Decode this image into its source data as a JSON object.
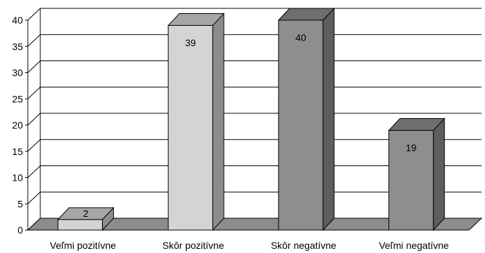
{
  "chart_data": {
    "type": "bar",
    "style": "3d-column",
    "categories": [
      "Veľmi pozitívne",
      "Skôr pozitívne",
      "Skôr negatívne",
      "Veľmi negatívne"
    ],
    "values": [
      2,
      39,
      40,
      19
    ],
    "data_labels": [
      "2",
      "39",
      "40",
      "19"
    ],
    "ylim": [
      0,
      40
    ],
    "yticks": [
      "0",
      "5",
      "10",
      "15",
      "20",
      "25",
      "30",
      "35",
      "40"
    ],
    "grid": true,
    "legend": "none",
    "title": "",
    "xlabel": "",
    "ylabel": "",
    "colors": {
      "bar_fronts": [
        "#d4d4d4",
        "#d4d4d4",
        "#8e8e8e",
        "#8e8e8e"
      ],
      "bar_tops": [
        "#a6a6a6",
        "#a6a6a6",
        "#6e6e6e",
        "#6e6e6e"
      ],
      "bar_sides": [
        "#8c8c8c",
        "#8c8c8c",
        "#5e5e5e",
        "#5e5e5e"
      ],
      "floor": "#8c8c8c",
      "grid": "#000000"
    }
  }
}
